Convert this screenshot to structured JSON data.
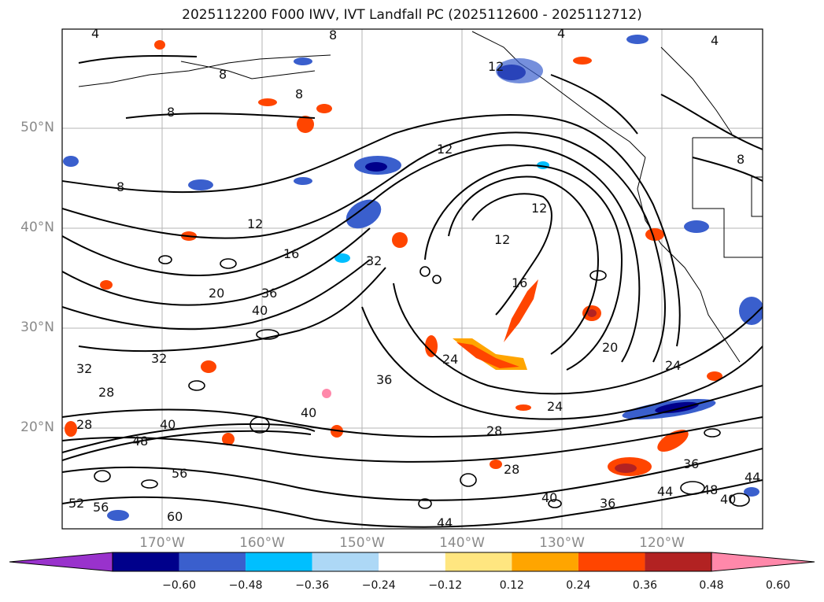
{
  "title": "2025112200 F000 IWV, IVT Landfall PC (2025112600 - 2025112712)",
  "lat_labels": [
    "50°N",
    "40°N",
    "30°N",
    "20°N"
  ],
  "lon_labels": [
    "170°W",
    "160°W",
    "150°W",
    "140°W",
    "130°W",
    "120°W"
  ],
  "colorbar": {
    "colors": [
      "#9932cc",
      "#00008b",
      "#3a5fcd",
      "#00bfff",
      "#add8f6",
      "#ffffff",
      "#ffe680",
      "#ffa500",
      "#ff4500",
      "#b22222",
      "#ff88aa"
    ],
    "labels": [
      "−0.60",
      "−0.48",
      "−0.36",
      "−0.24",
      "−0.12",
      "0.12",
      "0.24",
      "0.36",
      "0.48",
      "0.60"
    ]
  },
  "contour_labels": [
    "4",
    "4",
    "4",
    "8",
    "8",
    "8",
    "8",
    "8",
    "8",
    "12",
    "12",
    "12",
    "12",
    "12",
    "16",
    "16",
    "20",
    "20",
    "24",
    "24",
    "24",
    "28",
    "28",
    "28",
    "28",
    "32",
    "32",
    "32",
    "36",
    "36",
    "36",
    "36",
    "40",
    "40",
    "40",
    "40",
    "40",
    "44",
    "44",
    "44",
    "48",
    "48",
    "52",
    "56",
    "56",
    "60"
  ]
}
